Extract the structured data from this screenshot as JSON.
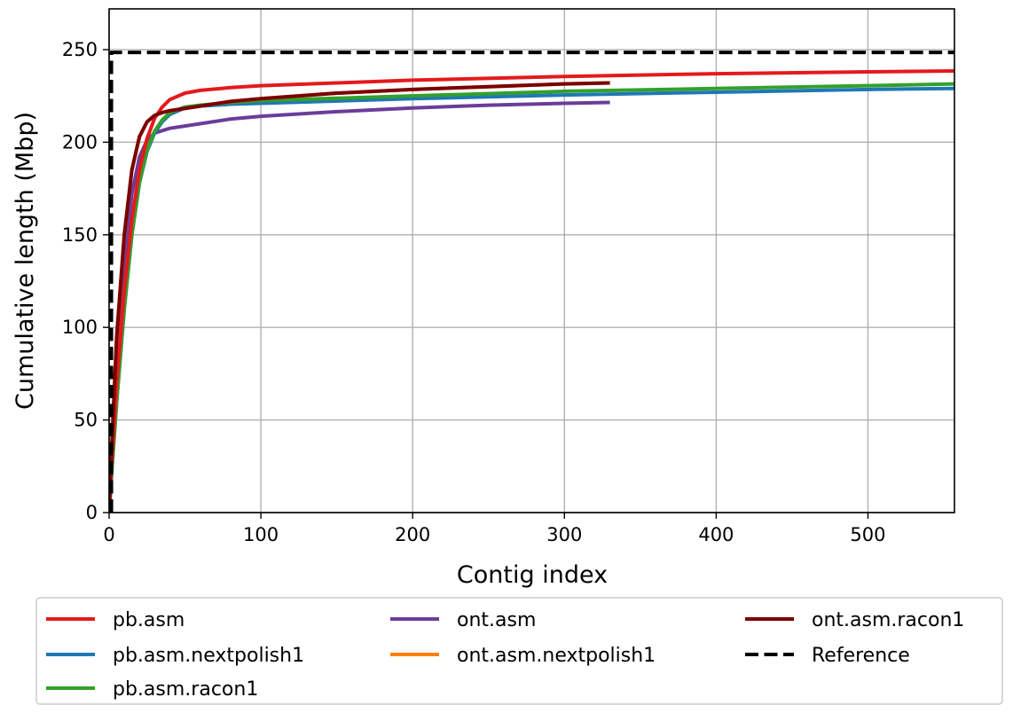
{
  "chart_data": {
    "type": "line",
    "title": "",
    "xlabel": "Contig index",
    "ylabel": "Cumulative length (Mbp)",
    "xlim": [
      0,
      557
    ],
    "ylim": [
      0,
      250
    ],
    "xticks": [
      0,
      100,
      200,
      300,
      400,
      500
    ],
    "yticks": [
      0,
      50,
      100,
      150,
      200,
      250
    ],
    "grid": true,
    "legend_position": "bottom",
    "series": [
      {
        "name": "pb.asm",
        "color": "#e41a1c",
        "style": "solid",
        "points": [
          [
            0,
            0
          ],
          [
            2,
            30
          ],
          [
            5,
            70
          ],
          [
            10,
            120
          ],
          [
            15,
            158
          ],
          [
            20,
            185
          ],
          [
            25,
            202
          ],
          [
            30,
            213
          ],
          [
            35,
            219
          ],
          [
            40,
            223
          ],
          [
            50,
            226.5
          ],
          [
            60,
            228
          ],
          [
            80,
            229.5
          ],
          [
            100,
            230.5
          ],
          [
            150,
            232
          ],
          [
            200,
            233.5
          ],
          [
            300,
            235.5
          ],
          [
            400,
            237
          ],
          [
            500,
            238
          ],
          [
            557,
            238.5
          ]
        ]
      },
      {
        "name": "pb.asm.nextpolish1",
        "color": "#1f78b4",
        "style": "solid",
        "points": [
          [
            0,
            0
          ],
          [
            2,
            25
          ],
          [
            5,
            60
          ],
          [
            10,
            110
          ],
          [
            15,
            150
          ],
          [
            20,
            178
          ],
          [
            25,
            195
          ],
          [
            30,
            205
          ],
          [
            35,
            211
          ],
          [
            40,
            215
          ],
          [
            50,
            218.5
          ],
          [
            60,
            219.5
          ],
          [
            80,
            220.5
          ],
          [
            100,
            221
          ],
          [
            200,
            223.5
          ],
          [
            300,
            225.5
          ],
          [
            400,
            227
          ],
          [
            500,
            228.5
          ],
          [
            557,
            229
          ]
        ]
      },
      {
        "name": "pb.asm.racon1",
        "color": "#33a02c",
        "style": "solid",
        "points": [
          [
            0,
            0
          ],
          [
            2,
            25
          ],
          [
            5,
            60
          ],
          [
            10,
            110
          ],
          [
            15,
            150
          ],
          [
            20,
            178
          ],
          [
            25,
            196
          ],
          [
            30,
            206
          ],
          [
            35,
            212
          ],
          [
            40,
            216
          ],
          [
            50,
            219
          ],
          [
            60,
            220
          ],
          [
            80,
            221.5
          ],
          [
            100,
            222.5
          ],
          [
            200,
            225
          ],
          [
            300,
            227.5
          ],
          [
            400,
            229
          ],
          [
            500,
            230.5
          ],
          [
            557,
            231.5
          ]
        ]
      },
      {
        "name": "ont.asm",
        "color": "#6a3d9a",
        "style": "solid",
        "points": [
          [
            0,
            0
          ],
          [
            2,
            35
          ],
          [
            5,
            85
          ],
          [
            10,
            135
          ],
          [
            15,
            172
          ],
          [
            20,
            192
          ],
          [
            25,
            201
          ],
          [
            30,
            205
          ],
          [
            40,
            207.5
          ],
          [
            60,
            210
          ],
          [
            80,
            212.5
          ],
          [
            100,
            214
          ],
          [
            150,
            216.5
          ],
          [
            200,
            218.5
          ],
          [
            250,
            220
          ],
          [
            300,
            221
          ],
          [
            330,
            221.5
          ]
        ]
      },
      {
        "name": "ont.asm.nextpolish1",
        "color": "#ff7f00",
        "style": "solid",
        "points": [
          [
            0,
            0
          ],
          [
            2,
            40
          ],
          [
            5,
            95
          ],
          [
            10,
            150
          ],
          [
            15,
            185
          ],
          [
            20,
            203
          ],
          [
            25,
            211
          ],
          [
            30,
            214.5
          ],
          [
            35,
            216
          ],
          [
            40,
            217
          ],
          [
            60,
            219.5
          ],
          [
            80,
            222
          ],
          [
            100,
            223.5
          ],
          [
            150,
            226.5
          ],
          [
            200,
            228.5
          ],
          [
            250,
            230
          ],
          [
            300,
            231.5
          ],
          [
            330,
            232
          ]
        ]
      },
      {
        "name": "ont.asm.racon1",
        "color": "#7a0000",
        "style": "solid",
        "points": [
          [
            0,
            0
          ],
          [
            2,
            40
          ],
          [
            5,
            95
          ],
          [
            10,
            150
          ],
          [
            15,
            185
          ],
          [
            20,
            203
          ],
          [
            25,
            211
          ],
          [
            30,
            214.5
          ],
          [
            35,
            216
          ],
          [
            40,
            217
          ],
          [
            60,
            219.5
          ],
          [
            80,
            222
          ],
          [
            100,
            223.5
          ],
          [
            150,
            226.5
          ],
          [
            200,
            228.5
          ],
          [
            250,
            230
          ],
          [
            300,
            231.5
          ],
          [
            330,
            232
          ]
        ]
      },
      {
        "name": "Reference",
        "color": "#000000",
        "style": "dashed",
        "points": [
          [
            1.5,
            0
          ],
          [
            1.5,
            248.5
          ],
          [
            557,
            248.5
          ]
        ]
      }
    ],
    "legend_order": [
      "pb.asm",
      "ont.asm",
      "ont.asm.racon1",
      "pb.asm.nextpolish1",
      "ont.asm.nextpolish1",
      "Reference",
      "pb.asm.racon1"
    ]
  }
}
